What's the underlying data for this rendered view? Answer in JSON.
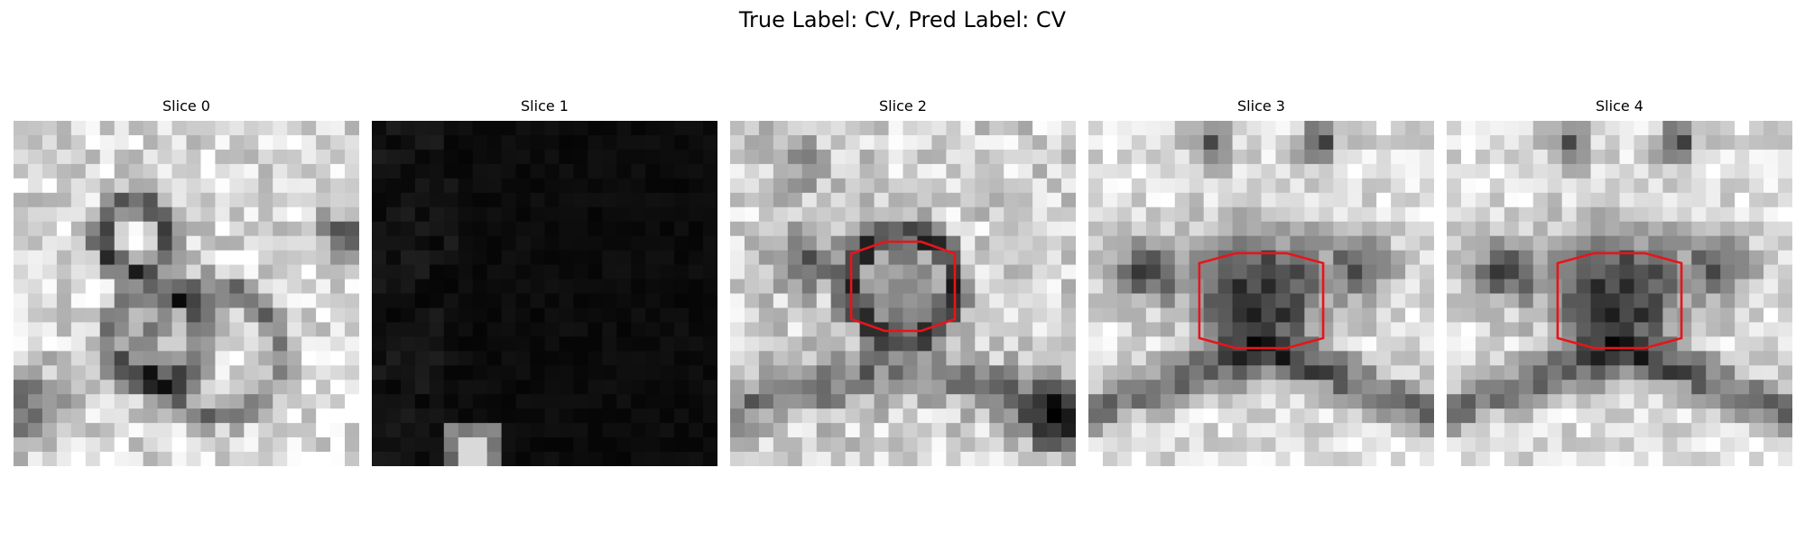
{
  "figure": {
    "suptitle": "True Label: CV, Pred Label: CV",
    "panels": [
      {
        "title": "Slice 0",
        "roi": false
      },
      {
        "title": "Slice 1",
        "roi": false
      },
      {
        "title": "Slice 2",
        "roi": true
      },
      {
        "title": "Slice 3",
        "roi": true
      },
      {
        "title": "Slice 4",
        "roi": true
      }
    ],
    "colormap": "gray",
    "roi_color": "#e8141a"
  }
}
